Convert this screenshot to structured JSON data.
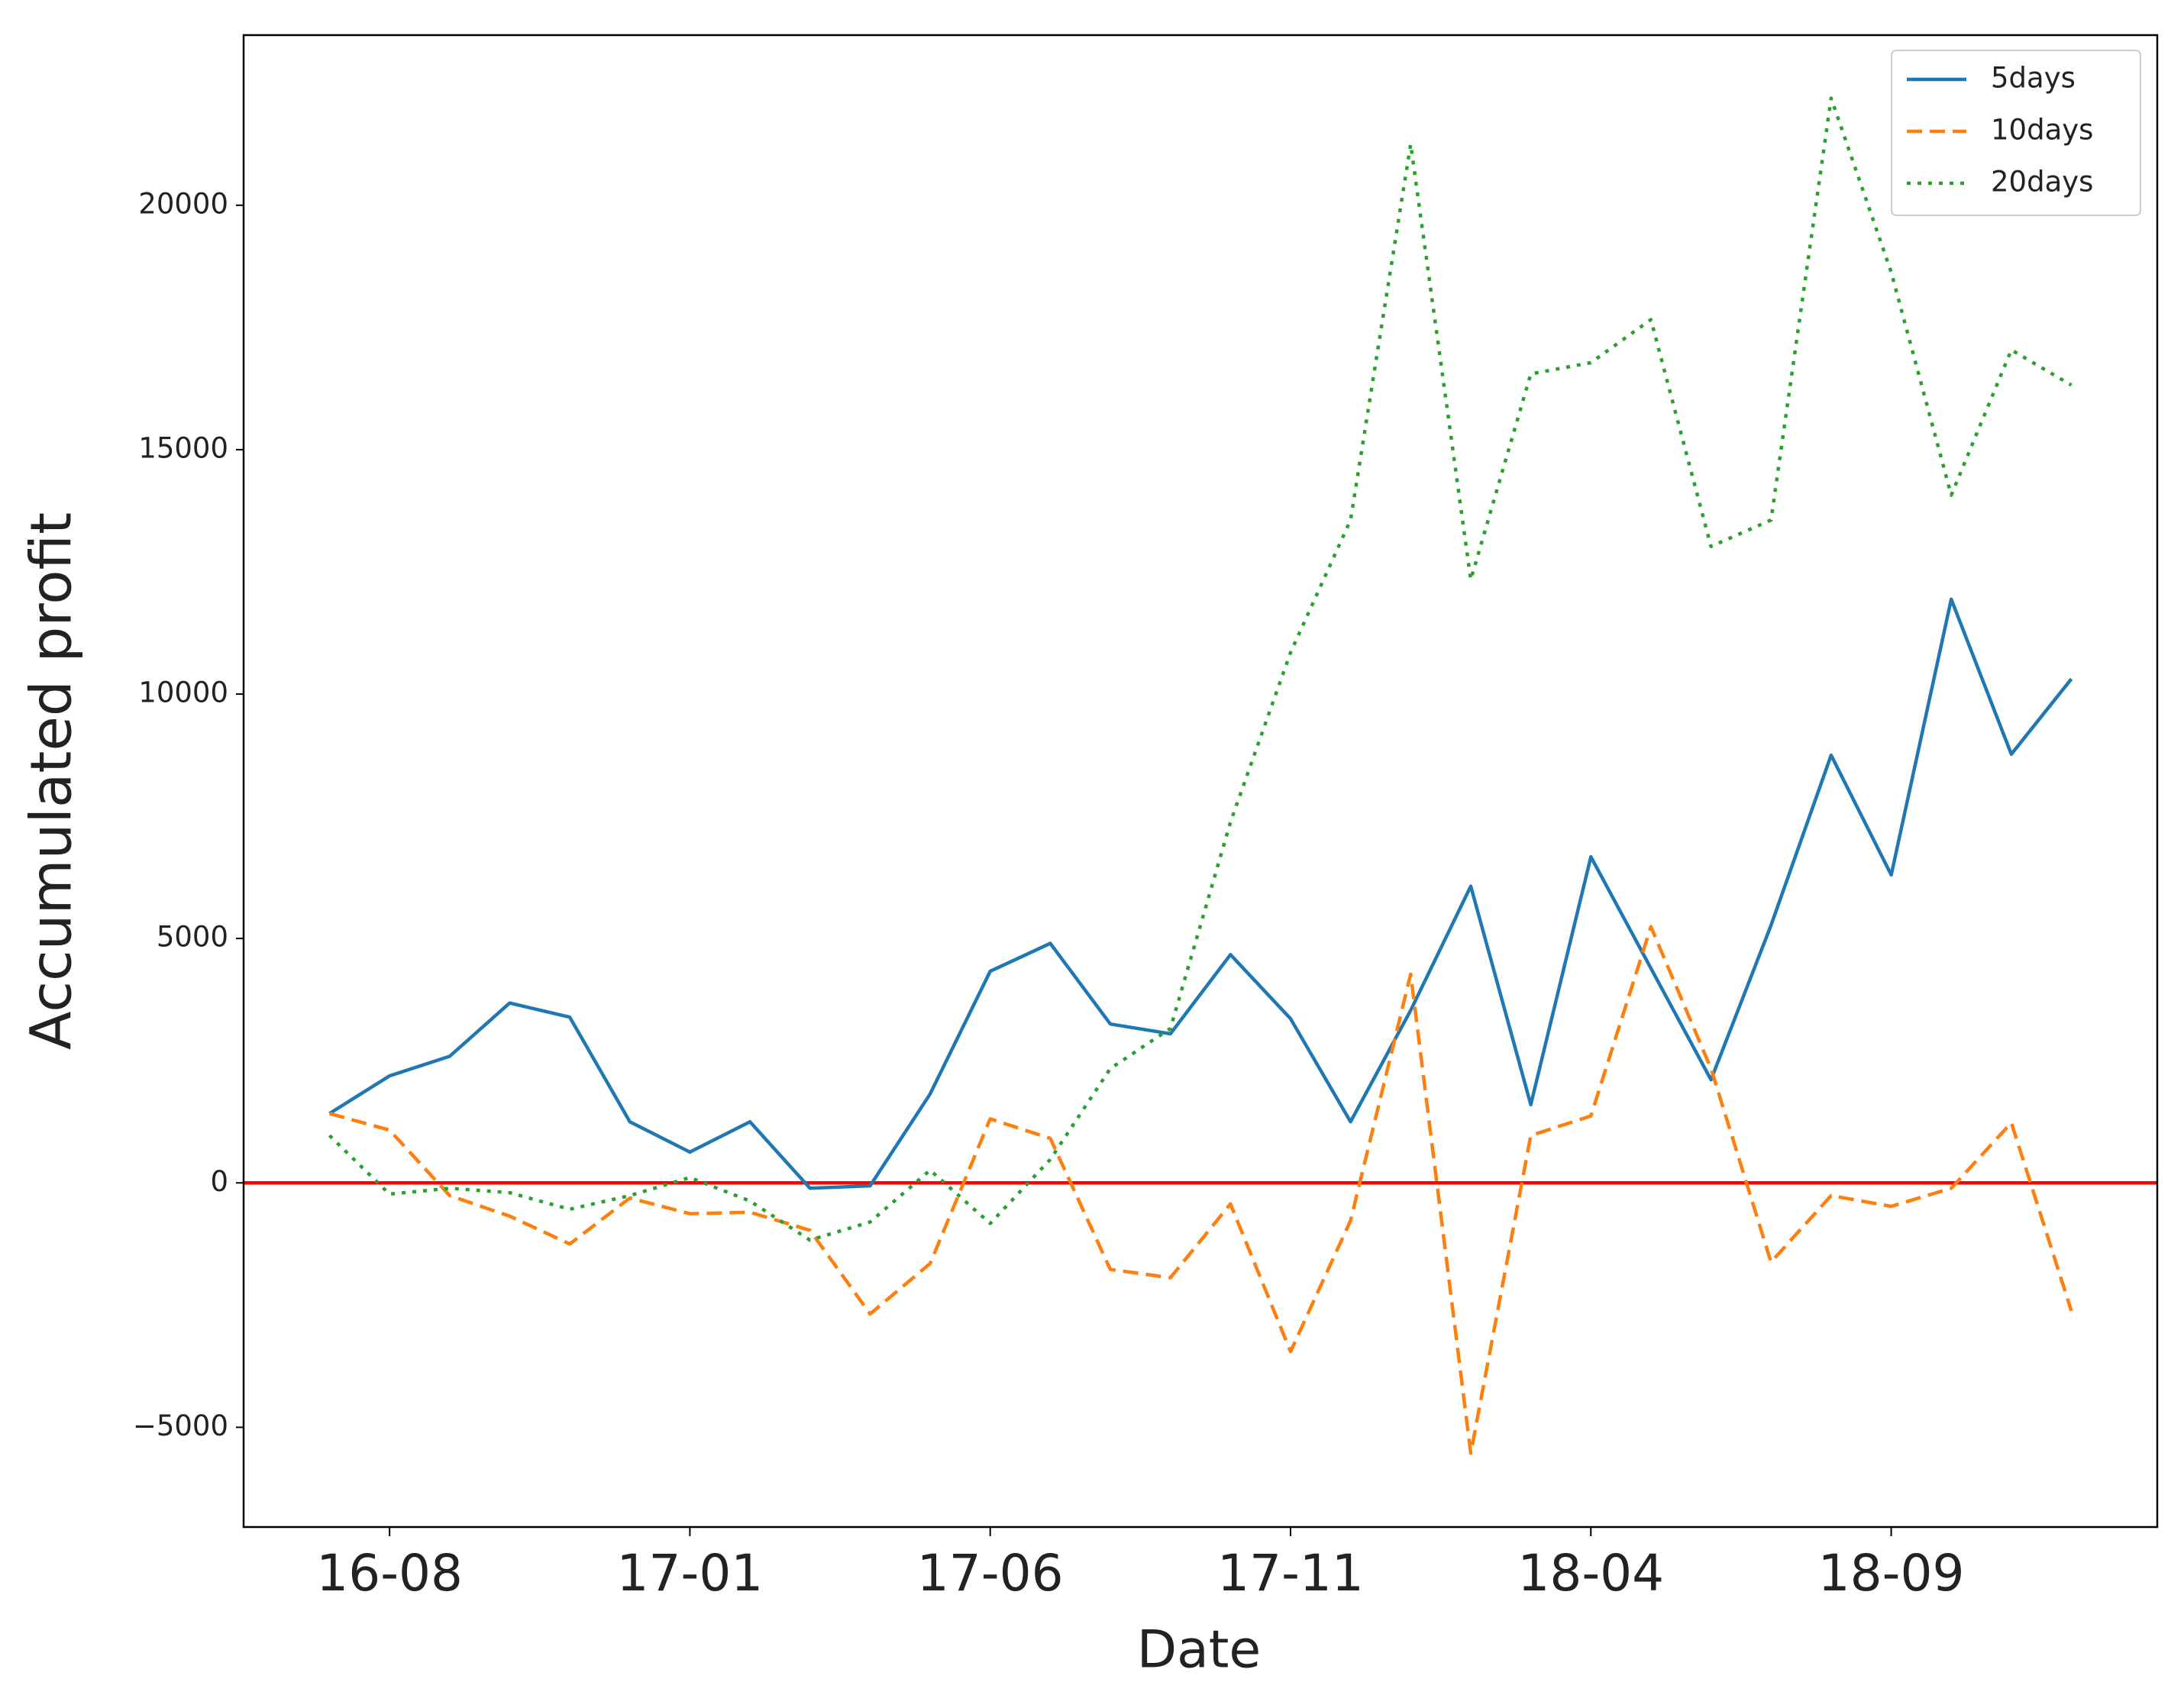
{
  "chart_data": {
    "type": "line",
    "x_label": "Date",
    "y_label": "Accumulated profit",
    "categories": [
      null,
      "16-08",
      null,
      null,
      null,
      null,
      "17-01",
      null,
      null,
      null,
      null,
      "17-06",
      null,
      null,
      null,
      null,
      "17-11",
      null,
      null,
      null,
      null,
      "18-04",
      null,
      null,
      null,
      null,
      "18-09",
      null,
      null,
      null
    ],
    "series": [
      {
        "name": "5days",
        "color": "#1f77b4",
        "linestyle": "solid",
        "values": [
          1420,
          2190,
          2590,
          3680,
          3390,
          1250,
          630,
          1250,
          -110,
          -60,
          1820,
          4330,
          4900,
          3250,
          3050,
          4670,
          3360,
          1250,
          3530,
          6070,
          1600,
          6670,
          4390,
          2110,
          5270,
          8750,
          6300,
          11940,
          8770,
          10310
        ]
      },
      {
        "name": "10days",
        "color": "#ff7f0e",
        "linestyle": "dashed",
        "values": [
          1420,
          1080,
          -260,
          -680,
          -1250,
          -310,
          -630,
          -600,
          -970,
          -2680,
          -1650,
          1310,
          910,
          -1770,
          -1940,
          -430,
          -3450,
          -770,
          4270,
          -5530,
          970,
          1370,
          5240,
          2340,
          -1620,
          -260,
          -480,
          -110,
          1230,
          -2620
        ]
      },
      {
        "name": "20days",
        "color": "#2ca02c",
        "linestyle": "dotted",
        "values": [
          970,
          -230,
          -110,
          -200,
          -540,
          -260,
          110,
          -370,
          -1170,
          -800,
          260,
          -830,
          480,
          2340,
          3160,
          7380,
          10850,
          13560,
          21250,
          12340,
          16550,
          16780,
          17660,
          13020,
          13560,
          22190,
          18630,
          14070,
          17040,
          16320
        ]
      }
    ],
    "ylim": [
      -7040,
      23480
    ],
    "yticks": [
      {
        "value": -5000,
        "label": "−5000"
      },
      0,
      5000,
      10000,
      15000,
      20000
    ],
    "hline": 0,
    "hline_color": "#ff0000",
    "legend": "upper right",
    "grid": false
  }
}
